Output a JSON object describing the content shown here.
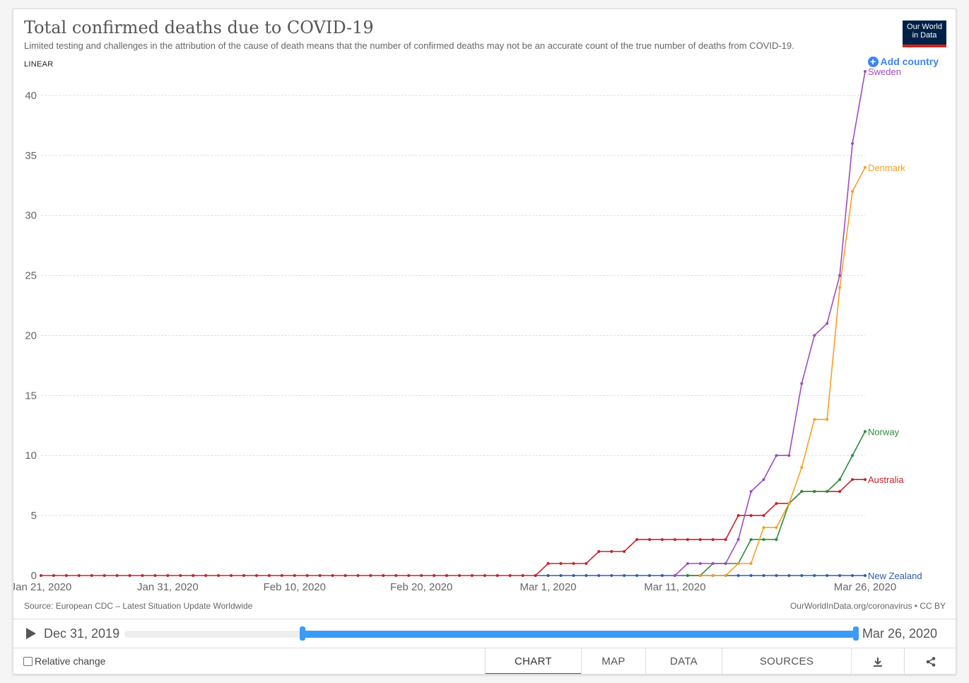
{
  "header": {
    "title": "Total confirmed deaths due to COVID-19",
    "subtitle": "Limited testing and challenges in the attribution of the cause of death means that the number of confirmed deaths may not be an accurate count of the true number of deaths from COVID-19.",
    "logo_line1": "Our World",
    "logo_line2": "in Data",
    "scale_label": "LINEAR",
    "add_country": "Add country"
  },
  "footer": {
    "source": "Source: European CDC – Latest Situation Update Worldwide",
    "credit": "OurWorldInData.org/coronavirus • CC BY"
  },
  "timeline": {
    "start_label": "Dec 31, 2019",
    "end_label": "Mar 26, 2020",
    "selected_start": "2020-01-21",
    "selected_end": "2020-03-26"
  },
  "controls": {
    "relative_change": "Relative change",
    "tabs": [
      "CHART",
      "MAP",
      "DATA",
      "SOURCES"
    ],
    "active_tab": "CHART",
    "download_icon": "download-icon",
    "share_icon": "share-icon"
  },
  "colors": {
    "Sweden": "#9e4cbd",
    "Denmark": "#f4a024",
    "Norway": "#2e8b3a",
    "Australia": "#c8202b",
    "New Zealand": "#2e5da8",
    "accent": "#3b86ec"
  },
  "chart_data": {
    "type": "line",
    "title": "Total confirmed deaths due to COVID-19",
    "xlabel": "",
    "ylabel": "",
    "x_start": "2020-01-21",
    "x_end": "2020-03-26",
    "x_ticks": [
      "Jan 21, 2020",
      "Jan 31, 2020",
      "Feb 10, 2020",
      "Feb 20, 2020",
      "Mar 1, 2020",
      "Mar 11, 2020",
      "Mar 26, 2020"
    ],
    "y_ticks": [
      0,
      5,
      10,
      15,
      20,
      25,
      30,
      35,
      40
    ],
    "ylim": [
      0,
      42
    ],
    "grid": true,
    "legend": "right end labels",
    "series": [
      {
        "name": "Sweden",
        "points": [
          [
            "2020-03-11",
            0
          ],
          [
            "2020-03-12",
            1
          ],
          [
            "2020-03-13",
            1
          ],
          [
            "2020-03-14",
            1
          ],
          [
            "2020-03-15",
            1
          ],
          [
            "2020-03-16",
            3
          ],
          [
            "2020-03-17",
            7
          ],
          [
            "2020-03-18",
            8
          ],
          [
            "2020-03-19",
            10
          ],
          [
            "2020-03-20",
            10
          ],
          [
            "2020-03-21",
            16
          ],
          [
            "2020-03-22",
            20
          ],
          [
            "2020-03-23",
            21
          ],
          [
            "2020-03-24",
            25
          ],
          [
            "2020-03-25",
            36
          ],
          [
            "2020-03-26",
            42
          ]
        ]
      },
      {
        "name": "Denmark",
        "points": [
          [
            "2020-03-13",
            0
          ],
          [
            "2020-03-14",
            0
          ],
          [
            "2020-03-15",
            0
          ],
          [
            "2020-03-16",
            1
          ],
          [
            "2020-03-17",
            1
          ],
          [
            "2020-03-18",
            4
          ],
          [
            "2020-03-19",
            4
          ],
          [
            "2020-03-20",
            6
          ],
          [
            "2020-03-21",
            9
          ],
          [
            "2020-03-22",
            13
          ],
          [
            "2020-03-23",
            13
          ],
          [
            "2020-03-24",
            24
          ],
          [
            "2020-03-25",
            32
          ],
          [
            "2020-03-26",
            34
          ]
        ]
      },
      {
        "name": "Norway",
        "points": [
          [
            "2020-03-12",
            0
          ],
          [
            "2020-03-13",
            0
          ],
          [
            "2020-03-14",
            1
          ],
          [
            "2020-03-15",
            1
          ],
          [
            "2020-03-16",
            1
          ],
          [
            "2020-03-17",
            3
          ],
          [
            "2020-03-18",
            3
          ],
          [
            "2020-03-19",
            3
          ],
          [
            "2020-03-20",
            6
          ],
          [
            "2020-03-21",
            7
          ],
          [
            "2020-03-22",
            7
          ],
          [
            "2020-03-23",
            7
          ],
          [
            "2020-03-24",
            8
          ],
          [
            "2020-03-25",
            10
          ],
          [
            "2020-03-26",
            12
          ]
        ]
      },
      {
        "name": "Australia",
        "points": [
          [
            "2020-01-21",
            0
          ],
          [
            "2020-02-29",
            0
          ],
          [
            "2020-03-01",
            1
          ],
          [
            "2020-03-02",
            1
          ],
          [
            "2020-03-03",
            1
          ],
          [
            "2020-03-04",
            1
          ],
          [
            "2020-03-05",
            2
          ],
          [
            "2020-03-06",
            2
          ],
          [
            "2020-03-07",
            2
          ],
          [
            "2020-03-08",
            3
          ],
          [
            "2020-03-09",
            3
          ],
          [
            "2020-03-10",
            3
          ],
          [
            "2020-03-11",
            3
          ],
          [
            "2020-03-12",
            3
          ],
          [
            "2020-03-13",
            3
          ],
          [
            "2020-03-14",
            3
          ],
          [
            "2020-03-15",
            3
          ],
          [
            "2020-03-16",
            5
          ],
          [
            "2020-03-17",
            5
          ],
          [
            "2020-03-18",
            5
          ],
          [
            "2020-03-19",
            6
          ],
          [
            "2020-03-20",
            6
          ],
          [
            "2020-03-21",
            7
          ],
          [
            "2020-03-22",
            7
          ],
          [
            "2020-03-23",
            7
          ],
          [
            "2020-03-24",
            7
          ],
          [
            "2020-03-25",
            8
          ],
          [
            "2020-03-26",
            8
          ]
        ]
      },
      {
        "name": "New Zealand",
        "points": [
          [
            "2020-02-29",
            0
          ],
          [
            "2020-03-26",
            0
          ]
        ]
      }
    ]
  }
}
